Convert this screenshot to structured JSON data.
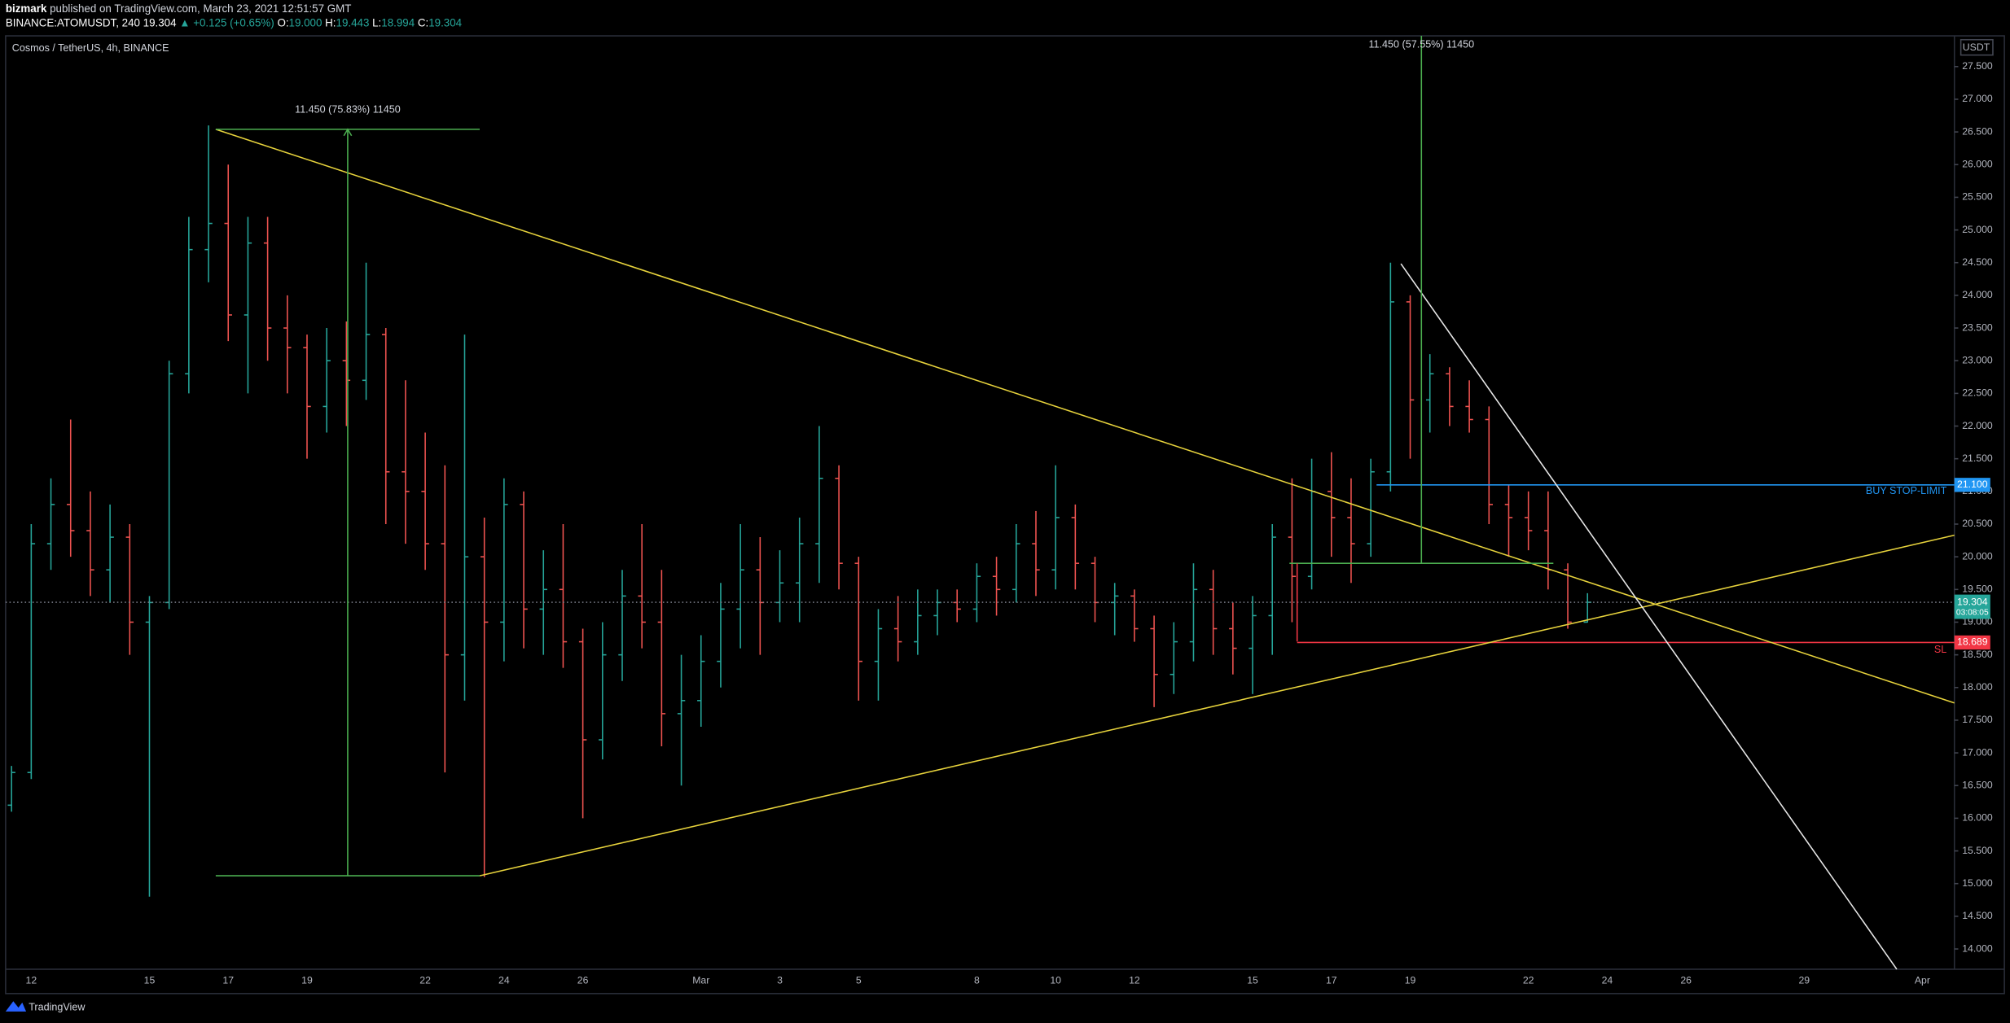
{
  "header": {
    "author": "bizmark",
    "published": "published on TradingView.com, March 23, 2021 12:51:57 GMT",
    "symbol": "BINANCE:ATOMUSDT, 240",
    "last": "19.304",
    "change": "▲ +0.125 (+0.65%)",
    "ohlc": [
      {
        "key": "O:",
        "value": "19.000"
      },
      {
        "key": "H:",
        "value": "19.443"
      },
      {
        "key": "L:",
        "value": "18.994"
      },
      {
        "key": "C:",
        "value": "19.304"
      }
    ]
  },
  "chart_data": {
    "type": "ohlc",
    "title": "Cosmos / TetherUS, 4h, BINANCE",
    "currency": "USDT",
    "up_color": "#26a69a",
    "down_color": "#ef5350",
    "grid": false,
    "categories": [
      null,
      "12",
      null,
      null,
      null,
      null,
      null,
      "15",
      null,
      null,
      null,
      "17",
      null,
      null,
      null,
      "19",
      null,
      null,
      null,
      null,
      null,
      "22",
      null,
      null,
      null,
      "24",
      null,
      null,
      null,
      "26",
      null,
      null,
      null,
      null,
      null,
      "Mar",
      null,
      null,
      null,
      "3",
      null,
      null,
      null,
      "5",
      null,
      null,
      null,
      null,
      null,
      "8",
      null,
      null,
      null,
      "10",
      null,
      null,
      null,
      "12",
      null,
      null,
      null,
      null,
      null,
      "15",
      null,
      null,
      null,
      "17",
      null,
      null,
      null,
      "19",
      null,
      null,
      null,
      null,
      null,
      "22",
      null,
      null,
      null,
      "24",
      null,
      null,
      null,
      "26",
      null,
      null,
      null,
      null,
      null,
      "29",
      null,
      null,
      null,
      null,
      null,
      "Apr",
      null
    ],
    "open": [
      16.2,
      16.7,
      20.2,
      20.8,
      20.4,
      19.8,
      20.3,
      19.0,
      19.3,
      22.8,
      24.7,
      25.1,
      23.7,
      24.8,
      23.5,
      23.2,
      22.3,
      23.0,
      22.7,
      23.4,
      21.3,
      21.0,
      20.2,
      18.5,
      20.0,
      19.0,
      20.8,
      19.2,
      19.5,
      18.7,
      17.2,
      18.5,
      19.4,
      19.0,
      17.6,
      17.8,
      18.4,
      19.2,
      19.8,
      19.3,
      19.6,
      20.2,
      21.2,
      19.9,
      18.4,
      18.9,
      18.7,
      19.1,
      19.3,
      19.2,
      19.7,
      19.5,
      20.2,
      19.8,
      20.6,
      19.9,
      19.3,
      19.4,
      18.9,
      18.2,
      18.7,
      19.5,
      18.9,
      18.6,
      19.1,
      20.3,
      19.7,
      21.0,
      20.6,
      20.2,
      21.3,
      23.9,
      22.4,
      22.8,
      22.3,
      22.1,
      20.8,
      20.6,
      20.4,
      19.8,
      19.0,
      null,
      null,
      null,
      null,
      null,
      null,
      null,
      null,
      null,
      null,
      null,
      null,
      null,
      null,
      null,
      null,
      null,
      null
    ],
    "high": [
      16.8,
      20.5,
      21.2,
      22.1,
      21.0,
      20.8,
      20.5,
      19.4,
      23.0,
      25.2,
      26.6,
      26.0,
      25.2,
      25.2,
      24.0,
      23.4,
      23.5,
      23.6,
      24.5,
      23.5,
      22.7,
      21.9,
      21.4,
      23.4,
      20.6,
      21.2,
      21.0,
      20.1,
      20.5,
      18.9,
      19.0,
      19.8,
      20.5,
      19.8,
      18.5,
      18.8,
      19.6,
      20.5,
      20.3,
      20.1,
      20.6,
      22.0,
      21.4,
      20.0,
      19.2,
      19.4,
      19.5,
      19.5,
      19.5,
      19.9,
      20.0,
      20.5,
      20.7,
      21.4,
      20.8,
      20.0,
      19.6,
      19.5,
      19.1,
      19.0,
      19.9,
      19.8,
      19.3,
      19.4,
      20.5,
      21.2,
      21.5,
      21.6,
      21.2,
      21.5,
      24.5,
      24.0,
      23.1,
      22.9,
      22.7,
      22.3,
      21.1,
      21.0,
      21.0,
      19.9,
      19.443,
      null,
      null,
      null,
      null,
      null,
      null,
      null,
      null,
      null,
      null,
      null,
      null,
      null,
      null,
      null,
      null,
      null,
      null
    ],
    "low": [
      16.1,
      16.6,
      19.8,
      20.0,
      19.4,
      19.3,
      18.5,
      14.8,
      19.2,
      22.5,
      24.2,
      23.3,
      22.5,
      23.0,
      22.5,
      21.5,
      21.9,
      22.0,
      22.4,
      20.5,
      20.2,
      19.8,
      16.7,
      17.8,
      15.1,
      18.4,
      18.6,
      18.5,
      18.3,
      16.0,
      16.9,
      18.1,
      18.6,
      17.1,
      16.5,
      17.4,
      18.0,
      18.6,
      18.5,
      19.0,
      19.0,
      19.6,
      19.5,
      17.8,
      17.8,
      18.4,
      18.5,
      18.8,
      19.0,
      19.0,
      19.1,
      19.3,
      19.4,
      19.5,
      19.5,
      19.0,
      18.8,
      18.7,
      17.7,
      17.9,
      18.4,
      18.5,
      18.2,
      17.9,
      18.5,
      19.0,
      19.5,
      20.0,
      19.6,
      20.0,
      21.0,
      21.5,
      21.9,
      22.0,
      21.9,
      20.5,
      20.0,
      20.1,
      19.5,
      18.9,
      18.994,
      null,
      null,
      null,
      null,
      null,
      null,
      null,
      null,
      null,
      null,
      null,
      null,
      null,
      null,
      null,
      null,
      null,
      null
    ],
    "close": [
      16.7,
      20.2,
      20.8,
      20.4,
      19.8,
      20.3,
      19.0,
      19.3,
      22.8,
      24.7,
      25.1,
      23.7,
      24.8,
      23.5,
      23.2,
      22.3,
      23.0,
      22.7,
      23.4,
      21.3,
      21.0,
      20.2,
      18.5,
      20.0,
      19.0,
      20.8,
      19.2,
      19.5,
      18.7,
      17.2,
      18.5,
      19.4,
      19.0,
      17.6,
      17.8,
      18.4,
      19.2,
      19.8,
      19.3,
      19.6,
      20.2,
      21.2,
      19.9,
      18.4,
      18.9,
      18.7,
      19.1,
      19.3,
      19.2,
      19.7,
      19.5,
      20.2,
      19.8,
      20.6,
      19.9,
      19.3,
      19.4,
      18.9,
      18.2,
      18.7,
      19.5,
      18.9,
      18.6,
      19.1,
      20.3,
      19.7,
      21.0,
      20.6,
      20.2,
      21.3,
      23.9,
      22.4,
      22.8,
      22.3,
      22.1,
      20.8,
      20.6,
      20.4,
      19.8,
      19.0,
      19.304,
      null,
      null,
      null,
      null,
      null,
      null,
      null,
      null,
      null,
      null,
      null,
      null,
      null,
      null,
      null,
      null,
      null,
      null
    ],
    "ylim": [
      13.69,
      27.97
    ],
    "yticks": [
      {
        "value": 14,
        "label": "14.000"
      },
      {
        "value": 14.5,
        "label": "14.500"
      },
      {
        "value": 15,
        "label": "15.000"
      },
      {
        "value": 15.5,
        "label": "15.500"
      },
      {
        "value": 16,
        "label": "16.000"
      },
      {
        "value": 16.5,
        "label": "16.500"
      },
      {
        "value": 17,
        "label": "17.000"
      },
      {
        "value": 17.5,
        "label": "17.500"
      },
      {
        "value": 18,
        "label": "18.000"
      },
      {
        "value": 18.5,
        "label": "18.500"
      },
      {
        "value": 19,
        "label": "19.000"
      },
      {
        "value": 19.5,
        "label": "19.500"
      },
      {
        "value": 20,
        "label": "20.000"
      },
      {
        "value": 20.5,
        "label": "20.500"
      },
      {
        "value": 21,
        "label": "21.000"
      },
      {
        "value": 21.5,
        "label": "21.500"
      },
      {
        "value": 22,
        "label": "22.000"
      },
      {
        "value": 22.5,
        "label": "22.500"
      },
      {
        "value": 23,
        "label": "23.000"
      },
      {
        "value": 23.5,
        "label": "23.500"
      },
      {
        "value": 24,
        "label": "24.000"
      },
      {
        "value": 24.5,
        "label": "24.500"
      },
      {
        "value": 25,
        "label": "25.000"
      },
      {
        "value": 25.5,
        "label": "25.500"
      },
      {
        "value": 26,
        "label": "26.000"
      },
      {
        "value": 26.5,
        "label": "26.500"
      },
      {
        "value": 27,
        "label": "27.000"
      },
      {
        "value": 27.5,
        "label": "27.500"
      }
    ],
    "levels": [
      {
        "name": "BUY STOP-LIMIT",
        "value": 21.1,
        "label": "21.100",
        "color": "#2196f3"
      },
      {
        "name": "SL",
        "value": 18.689,
        "label": "18.689",
        "color": "#f23645"
      }
    ],
    "last_price": {
      "value": 19.304,
      "label": "19.304",
      "countdown": "03:08:05",
      "color": "#26a69a"
    },
    "annotations": [
      "11.450 (75.83%) 11450",
      "11.450 (57.55%) 11450"
    ]
  },
  "footer": {
    "brand": "TradingView"
  }
}
